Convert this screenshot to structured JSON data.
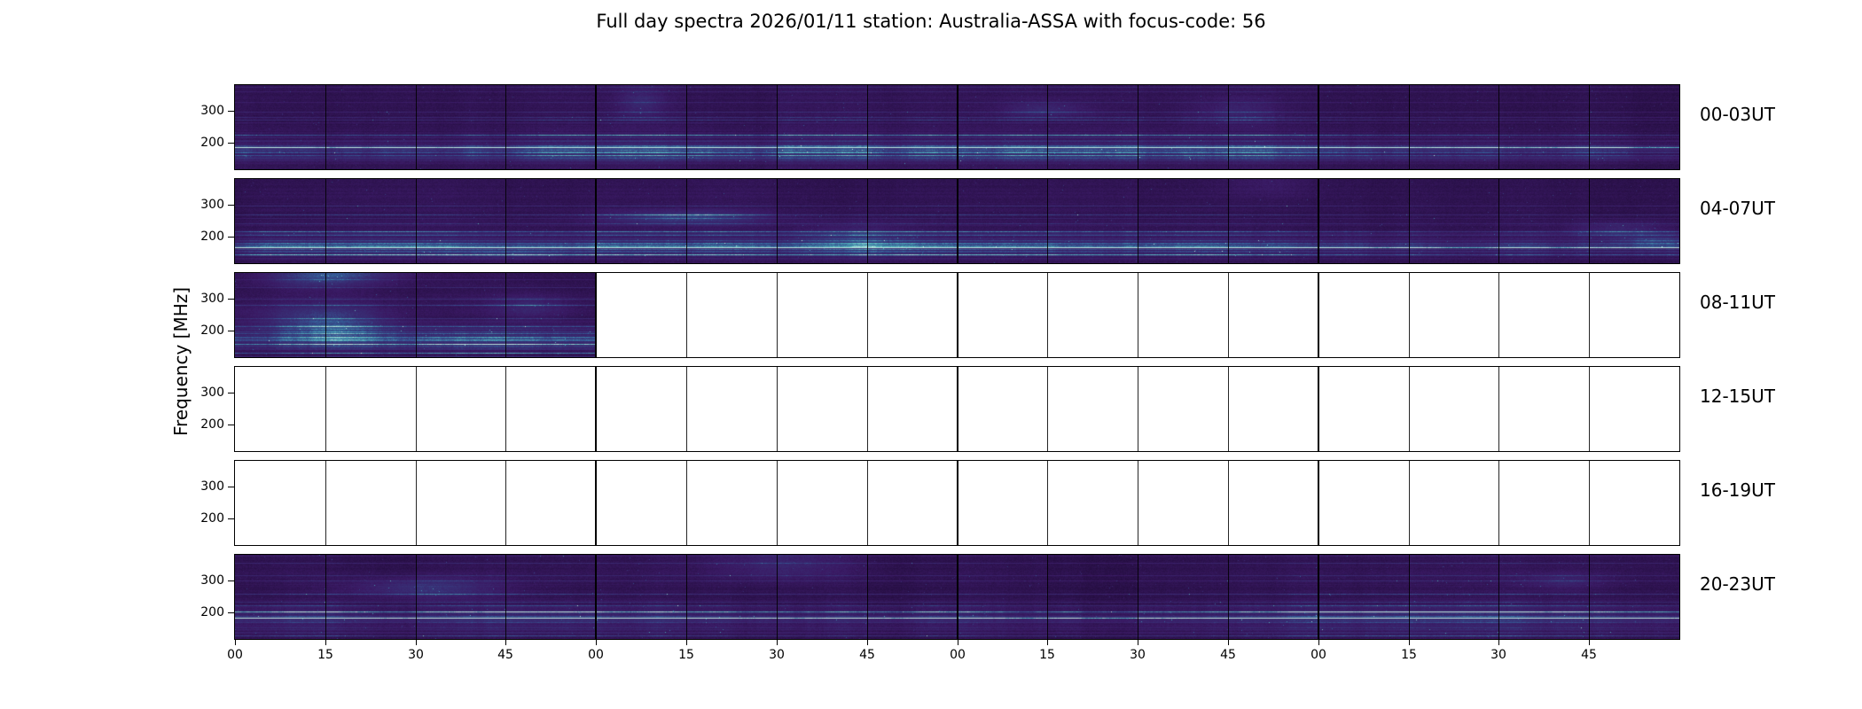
{
  "title": "Full day spectra 2026/01/11 station: Australia-ASSA with focus-code: 56",
  "y_axis_label": "Frequency [MHz]",
  "y_tick_labels": [
    "300",
    "200"
  ],
  "x_tick_labels": [
    "00",
    "15",
    "30",
    "45",
    "00",
    "15",
    "30",
    "45",
    "00",
    "15",
    "30",
    "45",
    "00",
    "15",
    "30",
    "45"
  ],
  "rows": [
    {
      "label": "00-03UT",
      "filled_cells": 16
    },
    {
      "label": "04-07UT",
      "filled_cells": 16
    },
    {
      "label": "08-11UT",
      "filled_cells": 4
    },
    {
      "label": "12-15UT",
      "filled_cells": 0
    },
    {
      "label": "16-19UT",
      "filled_cells": 0
    },
    {
      "label": "20-23UT",
      "filled_cells": 16
    }
  ],
  "colors": {
    "background": "#ffffff",
    "axis": "#000000",
    "spectrogram_base": "#3a1a66",
    "spectrogram_streak": "#4f9fc8",
    "spectrogram_bright": "#7fd4cf"
  },
  "chart_data": {
    "type": "heatmap",
    "subtype": "radio spectrogram day-overview grid",
    "title": "Full day spectra 2026/01/11 station: Australia-ASSA with focus-code: 56",
    "station": "Australia-ASSA",
    "date": "2026/01/11",
    "focus_code": "56",
    "ylabel": "Frequency [MHz]",
    "y_tick_values": [
      300,
      200
    ],
    "x_tick_minutes": [
      "00",
      "15",
      "30",
      "45",
      "00",
      "15",
      "30",
      "45",
      "00",
      "15",
      "30",
      "45",
      "00",
      "15",
      "30",
      "45"
    ],
    "panels_per_row": 16,
    "minutes_per_panel": 15,
    "hours_per_row": 4,
    "rows": [
      {
        "label": "00-03UT",
        "data_coverage_fraction": 1.0
      },
      {
        "label": "04-07UT",
        "data_coverage_fraction": 1.0
      },
      {
        "label": "08-11UT",
        "data_coverage_fraction": 0.25
      },
      {
        "label": "12-15UT",
        "data_coverage_fraction": 0.0
      },
      {
        "label": "16-19UT",
        "data_coverage_fraction": 0.0
      },
      {
        "label": "20-23UT",
        "data_coverage_fraction": 1.0
      }
    ],
    "colormap": "viridis low-end: dark purple background with sparse lighter blue horizontal bands, strongest near 150-250 MHz",
    "legend": "none",
    "grid": "vertical divider lines every 15 minutes, thicker at hour boundaries"
  }
}
